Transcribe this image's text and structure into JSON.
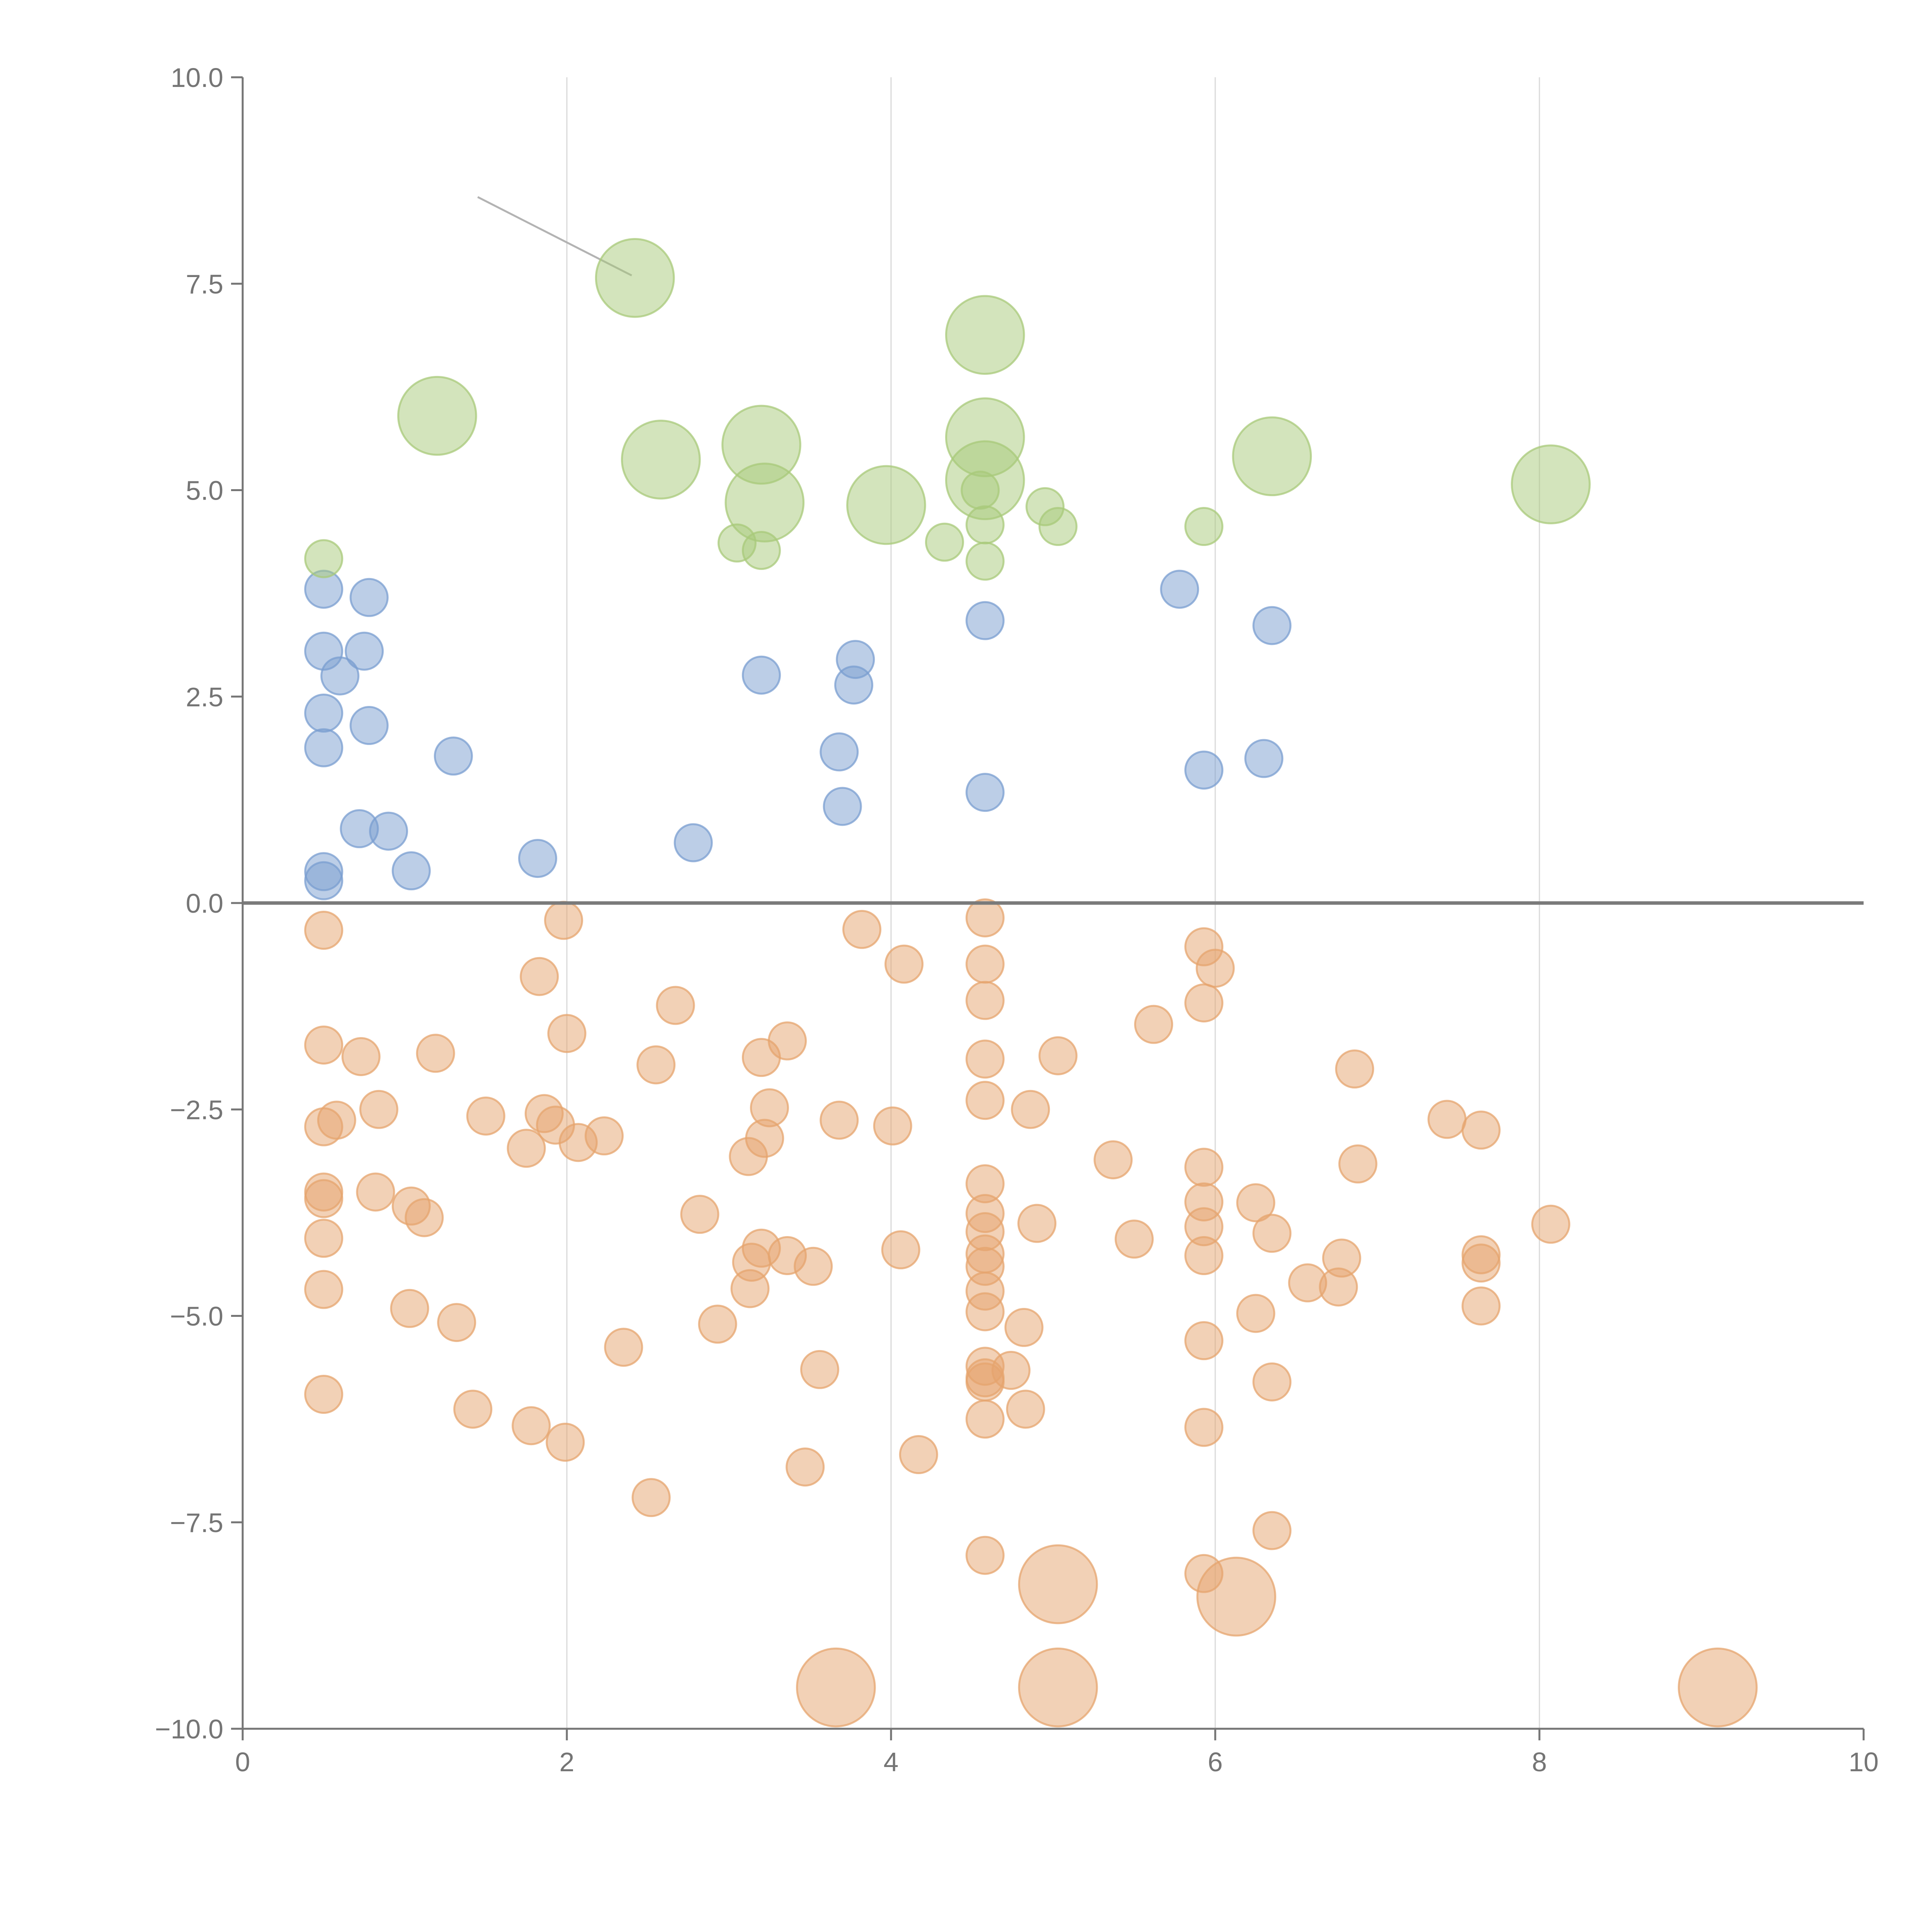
{
  "chart_data": {
    "type": "scatter",
    "title": "",
    "xlabel": "",
    "ylabel": "",
    "xlim": [
      0,
      10
    ],
    "ylim": [
      -10,
      10
    ],
    "x_ticks": [
      0,
      2,
      4,
      6,
      8,
      10
    ],
    "y_ticks": [
      -10.0,
      -7.5,
      -5.0,
      -2.5,
      0.0,
      2.5,
      5.0,
      7.5,
      10.0
    ],
    "x_tick_labels": [
      "0",
      "2",
      "4",
      "6",
      "8",
      "10"
    ],
    "y_tick_labels": [
      "−10.0",
      "−7.5",
      "−5.0",
      "−2.5",
      "0.0",
      "2.5",
      "5.0",
      "7.5",
      "10.0"
    ],
    "grid": {
      "vertical": true,
      "horizontal": false
    },
    "reference_line_y": 0,
    "series": [
      {
        "color": "#7a9ed0",
        "points": [
          [
            0.5,
            3.8,
            1
          ],
          [
            0.78,
            3.7,
            1
          ],
          [
            0.5,
            3.05,
            1
          ],
          [
            0.75,
            3.05,
            1
          ],
          [
            0.6,
            2.75,
            1
          ],
          [
            0.5,
            2.3,
            1
          ],
          [
            0.78,
            2.15,
            1
          ],
          [
            0.5,
            1.88,
            1
          ],
          [
            1.3,
            1.78,
            1
          ],
          [
            0.72,
            0.9,
            1
          ],
          [
            0.9,
            0.87,
            1
          ],
          [
            1.04,
            0.39,
            1
          ],
          [
            0.5,
            0.38,
            1
          ],
          [
            0.5,
            0.27,
            1
          ],
          [
            1.82,
            0.54,
            1
          ],
          [
            2.78,
            0.73,
            1
          ],
          [
            3.2,
            2.76,
            1
          ],
          [
            3.78,
            2.95,
            1
          ],
          [
            3.77,
            2.64,
            1
          ],
          [
            3.68,
            1.83,
            1
          ],
          [
            3.7,
            1.17,
            1
          ],
          [
            4.58,
            3.42,
            1
          ],
          [
            4.58,
            1.34,
            1
          ],
          [
            5.78,
            3.8,
            1
          ],
          [
            5.93,
            1.61,
            1
          ],
          [
            6.35,
            3.36,
            1
          ],
          [
            6.3,
            1.75,
            1
          ]
        ]
      },
      {
        "color": "#a8c97a",
        "points": [
          [
            0.5,
            4.17,
            1
          ],
          [
            1.2,
            5.9,
            2.1
          ],
          [
            2.42,
            7.57,
            2.1
          ],
          [
            2.58,
            5.37,
            2.1
          ],
          [
            3.2,
            5.55,
            2.1
          ],
          [
            3.22,
            4.85,
            2.1
          ],
          [
            3.05,
            4.36,
            1
          ],
          [
            3.2,
            4.27,
            1
          ],
          [
            3.97,
            4.82,
            2.1
          ],
          [
            4.33,
            4.37,
            1
          ],
          [
            4.58,
            6.88,
            2.1
          ],
          [
            4.58,
            5.64,
            2.1
          ],
          [
            4.58,
            5.12,
            2.1
          ],
          [
            4.55,
            5.0,
            1
          ],
          [
            4.58,
            4.58,
            1
          ],
          [
            4.58,
            4.14,
            1
          ],
          [
            4.95,
            4.8,
            1
          ],
          [
            5.03,
            4.56,
            1
          ],
          [
            5.93,
            4.56,
            1
          ],
          [
            6.35,
            5.41,
            2.1
          ],
          [
            8.07,
            5.07,
            2.1
          ]
        ]
      },
      {
        "color": "#e6a46e",
        "points": [
          [
            0.5,
            -0.33,
            1
          ],
          [
            1.98,
            -0.21,
            1
          ],
          [
            1.83,
            -0.89,
            1
          ],
          [
            0.5,
            -1.72,
            1
          ],
          [
            0.73,
            -1.86,
            1
          ],
          [
            1.19,
            -1.82,
            1
          ],
          [
            2.0,
            -1.58,
            1
          ],
          [
            2.67,
            -1.24,
            1
          ],
          [
            2.55,
            -1.96,
            1
          ],
          [
            3.82,
            -0.32,
            1
          ],
          [
            4.08,
            -0.74,
            1
          ],
          [
            4.58,
            -0.18,
            1
          ],
          [
            4.58,
            -0.74,
            1
          ],
          [
            4.58,
            -1.18,
            1
          ],
          [
            4.58,
            -1.89,
            1
          ],
          [
            4.58,
            -2.39,
            1
          ],
          [
            5.03,
            -1.85,
            1
          ],
          [
            4.86,
            -2.5,
            1
          ],
          [
            5.62,
            -1.47,
            1
          ],
          [
            5.93,
            -0.53,
            1
          ],
          [
            6.0,
            -0.79,
            1
          ],
          [
            5.93,
            -1.21,
            1
          ],
          [
            6.86,
            -2.01,
            1
          ],
          [
            0.5,
            -2.71,
            1
          ],
          [
            0.58,
            -2.63,
            1
          ],
          [
            0.84,
            -2.5,
            1
          ],
          [
            1.5,
            -2.58,
            1
          ],
          [
            1.86,
            -2.55,
            1
          ],
          [
            1.93,
            -2.69,
            1
          ],
          [
            1.75,
            -2.97,
            1
          ],
          [
            2.07,
            -2.9,
            1
          ],
          [
            2.23,
            -2.82,
            1
          ],
          [
            3.2,
            -1.87,
            1
          ],
          [
            3.36,
            -1.67,
            1
          ],
          [
            3.25,
            -2.48,
            1
          ],
          [
            3.22,
            -2.85,
            1
          ],
          [
            3.12,
            -3.07,
            1
          ],
          [
            3.68,
            -2.63,
            1
          ],
          [
            4.01,
            -2.7,
            1
          ],
          [
            5.37,
            -3.11,
            1
          ],
          [
            5.93,
            -3.2,
            1
          ],
          [
            6.88,
            -3.16,
            1
          ],
          [
            7.43,
            -2.62,
            1
          ],
          [
            7.64,
            -2.75,
            1
          ],
          [
            0.5,
            -3.5,
            1
          ],
          [
            0.5,
            -3.58,
            1
          ],
          [
            0.82,
            -3.5,
            1
          ],
          [
            1.04,
            -3.67,
            1
          ],
          [
            1.12,
            -3.81,
            1
          ],
          [
            0.5,
            -4.06,
            1
          ],
          [
            2.82,
            -3.77,
            1
          ],
          [
            3.2,
            -4.18,
            1
          ],
          [
            3.14,
            -4.35,
            1
          ],
          [
            3.36,
            -4.27,
            1
          ],
          [
            3.52,
            -4.4,
            1
          ],
          [
            3.13,
            -4.67,
            1
          ],
          [
            4.06,
            -4.2,
            1
          ],
          [
            4.58,
            -3.4,
            1
          ],
          [
            4.58,
            -3.76,
            1
          ],
          [
            4.58,
            -3.98,
            1
          ],
          [
            4.58,
            -4.25,
            1
          ],
          [
            4.58,
            -4.4,
            1
          ],
          [
            4.58,
            -4.7,
            1
          ],
          [
            4.58,
            -4.95,
            1
          ],
          [
            4.9,
            -3.88,
            1
          ],
          [
            5.5,
            -4.07,
            1
          ],
          [
            5.93,
            -3.62,
            1
          ],
          [
            5.93,
            -3.92,
            1
          ],
          [
            5.93,
            -4.27,
            1
          ],
          [
            6.25,
            -3.63,
            1
          ],
          [
            6.35,
            -4.0,
            1
          ],
          [
            6.57,
            -4.6,
            1
          ],
          [
            6.78,
            -4.3,
            1
          ],
          [
            6.76,
            -4.65,
            1
          ],
          [
            7.64,
            -4.26,
            1
          ],
          [
            7.64,
            -4.36,
            1
          ],
          [
            8.07,
            -3.89,
            1
          ],
          [
            0.5,
            -4.68,
            1
          ],
          [
            1.03,
            -4.91,
            1
          ],
          [
            1.32,
            -5.08,
            1
          ],
          [
            2.93,
            -5.1,
            1
          ],
          [
            2.35,
            -5.38,
            1
          ],
          [
            3.56,
            -5.65,
            1
          ],
          [
            4.58,
            -5.61,
            1
          ],
          [
            4.74,
            -5.66,
            1
          ],
          [
            4.58,
            -5.75,
            1
          ],
          [
            4.58,
            -5.8,
            1
          ],
          [
            4.82,
            -5.14,
            1
          ],
          [
            4.83,
            -6.13,
            1
          ],
          [
            5.93,
            -5.3,
            1
          ],
          [
            6.25,
            -4.97,
            1
          ],
          [
            6.35,
            -5.8,
            1
          ],
          [
            7.64,
            -4.88,
            1
          ],
          [
            0.5,
            -5.95,
            1
          ],
          [
            1.42,
            -6.13,
            1
          ],
          [
            1.78,
            -6.33,
            1
          ],
          [
            1.99,
            -6.53,
            1
          ],
          [
            2.52,
            -7.2,
            1
          ],
          [
            3.47,
            -6.83,
            1
          ],
          [
            4.17,
            -6.68,
            1
          ],
          [
            4.58,
            -6.25,
            1
          ],
          [
            5.93,
            -6.35,
            1
          ],
          [
            6.35,
            -7.6,
            1
          ],
          [
            4.58,
            -7.9,
            1
          ],
          [
            5.93,
            -8.12,
            1
          ],
          [
            5.03,
            -8.25,
            2.1
          ],
          [
            6.13,
            -8.4,
            2.1
          ],
          [
            3.66,
            -9.5,
            2.1
          ],
          [
            5.03,
            -9.5,
            2.1
          ],
          [
            9.1,
            -9.5,
            2.1
          ]
        ]
      }
    ],
    "connector_lines": [
      {
        "color": "#b3b3b3",
        "from": [
          1.45,
          8.55
        ],
        "to": [
          2.4,
          7.6
        ]
      }
    ]
  }
}
